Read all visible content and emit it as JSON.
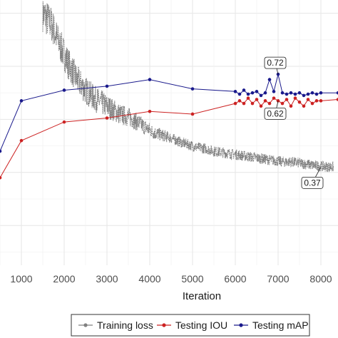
{
  "chart_data": {
    "type": "line",
    "xlabel": "Iteration",
    "x_ticks": [
      1000,
      2000,
      3000,
      4000,
      5000,
      6000,
      7000,
      8000
    ],
    "xlim": [
      500,
      8400
    ],
    "ylim": [
      0,
      1
    ],
    "grid": true,
    "legend_position": "bottom",
    "series": [
      {
        "name": "Training loss",
        "color": "#808080",
        "style": "line",
        "x": [
          1500,
          1700,
          1900,
          2100,
          2300,
          2500,
          2700,
          2900,
          3100,
          3300,
          3500,
          3700,
          3900,
          4100,
          4300,
          4500,
          4700,
          4900,
          5100,
          5300,
          5500,
          5700,
          5900,
          6100,
          6300,
          6500,
          6700,
          6900,
          7100,
          7300,
          7500,
          7700,
          7900,
          8100,
          8300
        ],
        "values": [
          0.95,
          0.91,
          0.83,
          0.76,
          0.7,
          0.66,
          0.63,
          0.61,
          0.59,
          0.57,
          0.56,
          0.54,
          0.52,
          0.5,
          0.49,
          0.48,
          0.465,
          0.455,
          0.445,
          0.44,
          0.43,
          0.425,
          0.42,
          0.415,
          0.41,
          0.405,
          0.4,
          0.395,
          0.39,
          0.39,
          0.385,
          0.38,
          0.375,
          0.372,
          0.37
        ]
      },
      {
        "name": "Testing IOU",
        "color": "#cc2222",
        "style": "line-points",
        "x": [
          500,
          1000,
          2000,
          3000,
          4000,
          5000,
          6000,
          6100,
          6200,
          6300,
          6400,
          6500,
          6600,
          6700,
          6800,
          6900,
          7000,
          7100,
          7200,
          7300,
          7400,
          7500,
          7600,
          7700,
          7800,
          7900,
          8000,
          8400
        ],
        "values": [
          0.33,
          0.47,
          0.54,
          0.555,
          0.58,
          0.57,
          0.61,
          0.62,
          0.61,
          0.63,
          0.61,
          0.625,
          0.6,
          0.62,
          0.61,
          0.63,
          0.62,
          0.61,
          0.625,
          0.6,
          0.63,
          0.615,
          0.6,
          0.625,
          0.61,
          0.62,
          0.62,
          0.625
        ]
      },
      {
        "name": "Testing mAP",
        "color": "#1a1a8c",
        "style": "line-points",
        "x": [
          500,
          1000,
          2000,
          3000,
          4000,
          5000,
          6000,
          6100,
          6200,
          6300,
          6400,
          6500,
          6600,
          6700,
          6800,
          6900,
          7000,
          7100,
          7200,
          7300,
          7400,
          7500,
          7600,
          7700,
          7800,
          7900,
          8000,
          8400
        ],
        "values": [
          0.43,
          0.62,
          0.66,
          0.675,
          0.7,
          0.665,
          0.655,
          0.645,
          0.66,
          0.645,
          0.65,
          0.655,
          0.64,
          0.65,
          0.7,
          0.655,
          0.72,
          0.65,
          0.645,
          0.65,
          0.645,
          0.65,
          0.64,
          0.645,
          0.65,
          0.645,
          0.65,
          0.65
        ]
      }
    ],
    "annotations": [
      {
        "text": "0.72",
        "x": 7000,
        "y": 0.72
      },
      {
        "text": "0.62",
        "x": 7000,
        "y": 0.62
      },
      {
        "text": "0.37",
        "x": 8000,
        "y": 0.37
      }
    ]
  },
  "legend": {
    "items": [
      {
        "label": "Training loss",
        "color": "#808080"
      },
      {
        "label": "Testing IOU",
        "color": "#cc2222"
      },
      {
        "label": "Testing mAP",
        "color": "#1a1a8c"
      }
    ]
  }
}
